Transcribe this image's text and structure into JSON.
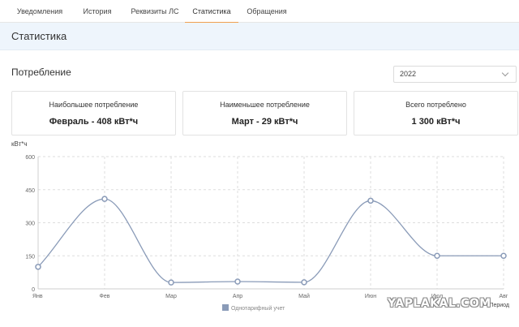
{
  "tabs": [
    {
      "label": "Уведомления"
    },
    {
      "label": "История"
    },
    {
      "label": "Реквизиты ЛС"
    },
    {
      "label": "Статистика",
      "active": true
    },
    {
      "label": "Обращения"
    }
  ],
  "section": {
    "title": "Статистика"
  },
  "consumption": {
    "title": "Потребление"
  },
  "year_select": {
    "value": "2022"
  },
  "cards": [
    {
      "label": "Наибольшее потребление",
      "value": "Февраль - 408 кВт*ч"
    },
    {
      "label": "Наименьшее потребление",
      "value": "Март - 29 кВт*ч"
    },
    {
      "label": "Всего потреблено",
      "value": "1 300 кВт*ч"
    }
  ],
  "watermark": "YAPLAKAL.COM",
  "colors": {
    "accent_tab": "#f0a050",
    "line": "#8a9bb8",
    "header_bg": "#eef5fc"
  },
  "chart_data": {
    "type": "line",
    "title": "",
    "ylabel": "кВт*ч",
    "xlabel": "Период",
    "ylim": [
      0,
      600
    ],
    "yticks": [
      "0",
      "150",
      "300",
      "450",
      "600"
    ],
    "categories": [
      "Янв",
      "Фев",
      "Мар",
      "Апр",
      "Май",
      "Июн",
      "Июл",
      "Авг"
    ],
    "series": [
      {
        "name": "Однотарифный учет",
        "values": [
          100,
          408,
          29,
          33,
          30,
          400,
          150,
          150
        ]
      }
    ],
    "grid": true,
    "legend": "bottom"
  }
}
